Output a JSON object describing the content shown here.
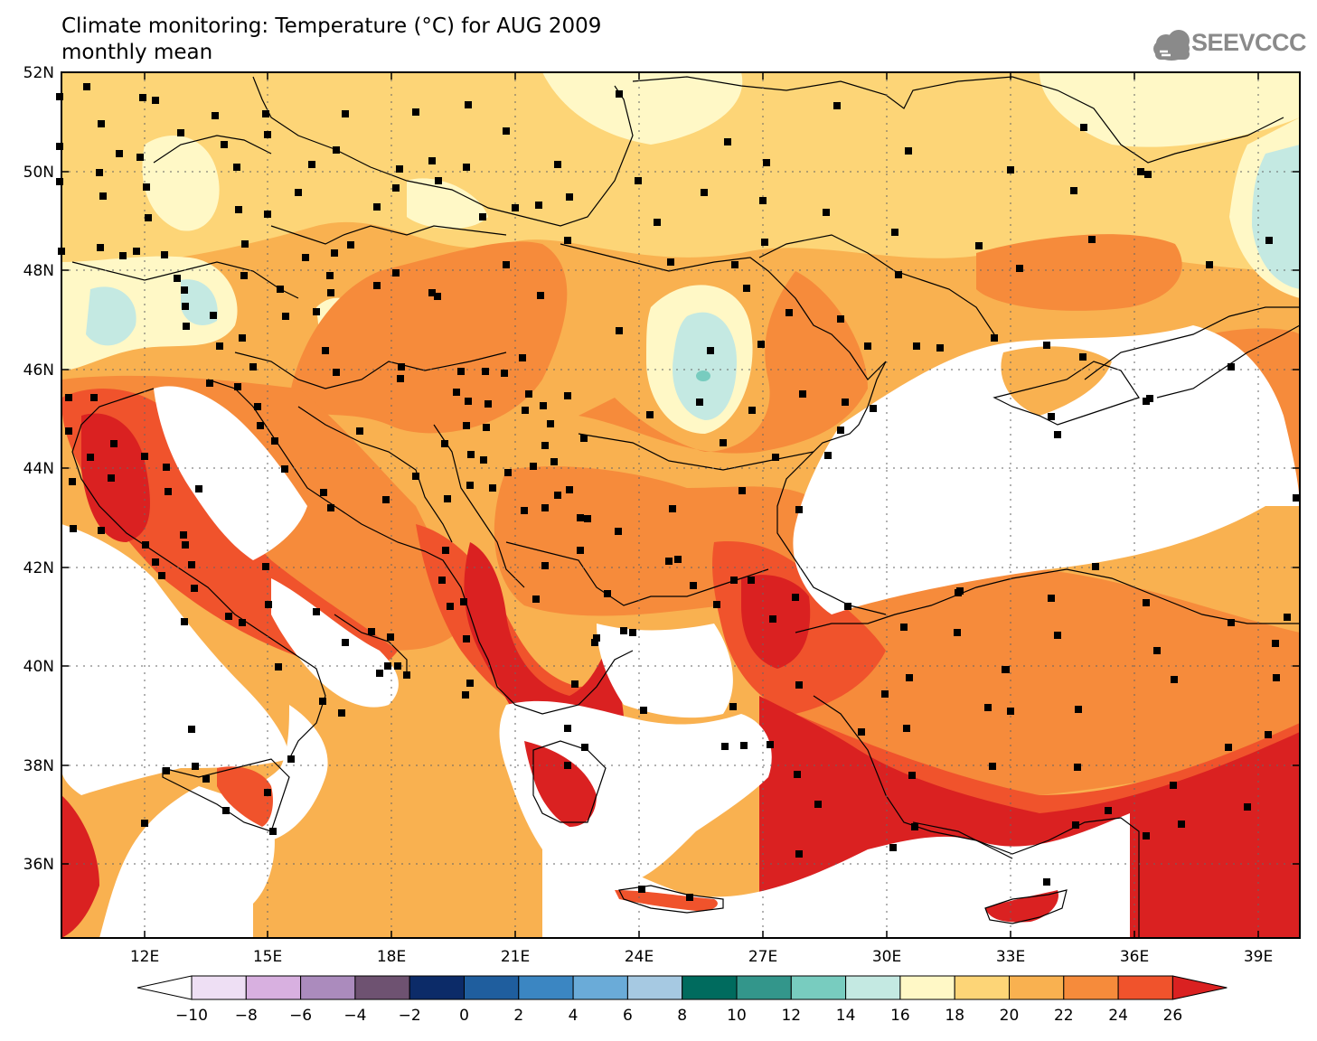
{
  "title": "Climate monitoring: Temperature (°C) for AUG 2009",
  "subtitle": "monthly mean",
  "logo": {
    "text": "SEEVCCC",
    "icon": "cloud-icon"
  },
  "map": {
    "variable": "Temperature (°C)",
    "period": "AUG 2009",
    "statistic": "monthly mean",
    "lat_ticks": [
      "52N",
      "50N",
      "48N",
      "46N",
      "44N",
      "42N",
      "40N",
      "38N",
      "36N"
    ],
    "lon_ticks": [
      "12E",
      "15E",
      "18E",
      "21E",
      "24E",
      "27E",
      "30E",
      "33E",
      "36E",
      "39E"
    ],
    "lat_range": [
      34.5,
      52
    ],
    "lon_range": [
      10,
      40
    ],
    "grid": true
  },
  "colorbar": {
    "labels": [
      "-10",
      "-8",
      "-6",
      "-4",
      "-2",
      "0",
      "2",
      "4",
      "6",
      "8",
      "10",
      "12",
      "14",
      "16",
      "18",
      "20",
      "22",
      "24",
      "26"
    ],
    "colors": [
      "#ffffff",
      "#eedff4",
      "#d8b0e0",
      "#ab8bbd",
      "#6e5271",
      "#0c2b68",
      "#1f5e9e",
      "#3b86c2",
      "#6aabd8",
      "#a6c9e2",
      "#006b5e",
      "#33968b",
      "#78ccbf",
      "#c4e9e2",
      "#fff8c6",
      "#fdd577",
      "#f9b150",
      "#f68b3b",
      "#f0532c",
      "#da2121"
    ]
  }
}
